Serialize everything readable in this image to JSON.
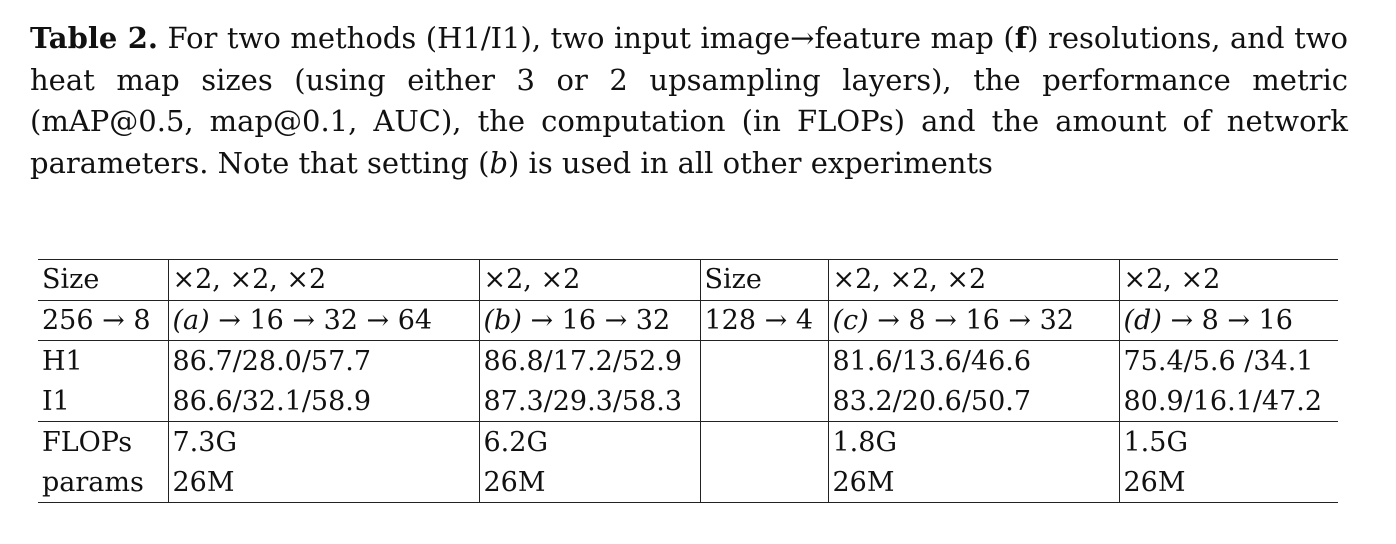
{
  "caption": {
    "label": "Table 2.",
    "text_1": " For two methods (H1/I1), two input image→feature map (",
    "f_symbol": "f",
    "text_2": ") resolutions, and two heat map sizes (using either 3 or 2 upsampling layers), the performance metric (mAP@0.5, map@0.1, AUC), the computation (in FLOPs) and the amount of network parameters. Note that setting (",
    "b_symbol": "b",
    "text_3": ") is used in all other experiments"
  },
  "table": {
    "header_row_1": [
      "Size",
      "×2, ×2, ×2",
      "×2, ×2",
      "Size",
      "×2, ×2, ×2",
      "×2, ×2"
    ],
    "header_row_2": {
      "size_a": "256 → 8",
      "setting_a": {
        "label": "(a)",
        "rest": " → 16 → 32 → 64"
      },
      "setting_b": {
        "label": "(b)",
        "rest": " → 16 → 32"
      },
      "size_b": "128 → 4",
      "setting_c": {
        "label": "(c)",
        "rest": " → 8 → 16 → 32"
      },
      "setting_d": {
        "label": "(d)",
        "rest": " → 8 → 16"
      }
    },
    "rows": [
      [
        "H1",
        "86.7/28.0/57.7",
        "86.8/17.2/52.9",
        "",
        "81.6/13.6/46.6",
        "75.4/5.6 /34.1"
      ],
      [
        "I1",
        "86.6/32.1/58.9",
        "87.3/29.3/58.3",
        "",
        "83.2/20.6/50.7",
        "80.9/16.1/47.2"
      ],
      [
        "FLOPs",
        "7.3G",
        "6.2G",
        "",
        "1.8G",
        "1.5G"
      ],
      [
        "params",
        "26M",
        "26M",
        "",
        "26M",
        "26M"
      ]
    ]
  }
}
